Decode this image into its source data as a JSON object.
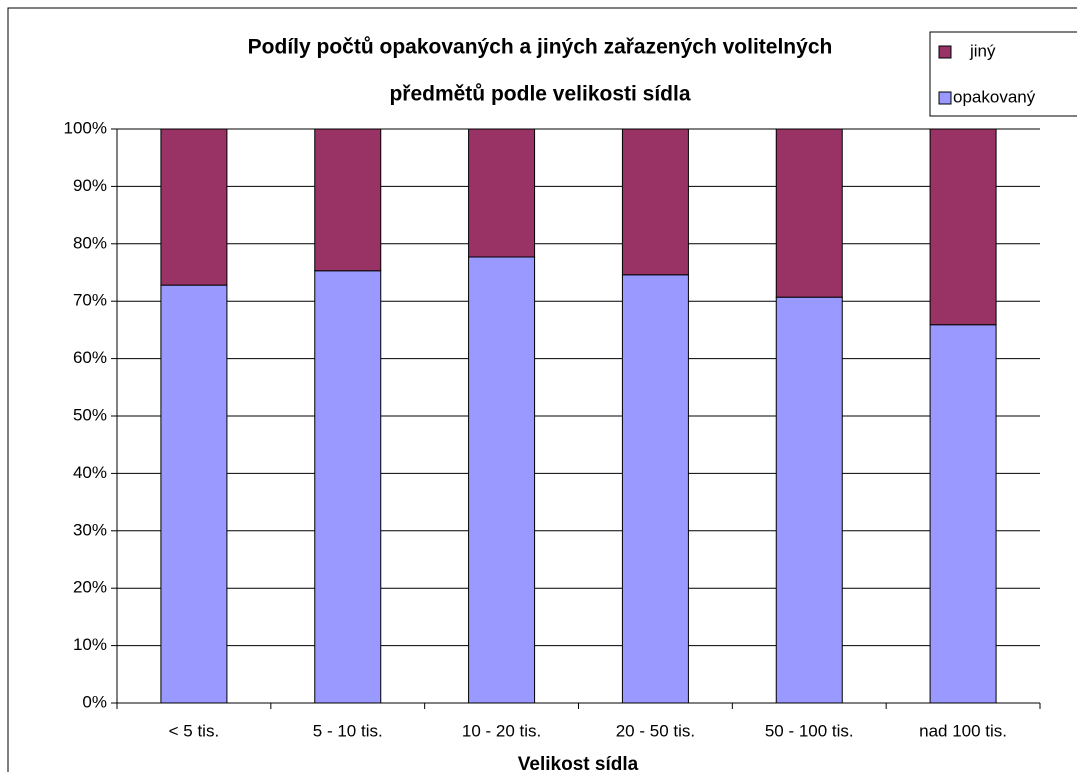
{
  "chart_data": {
    "type": "stacked_bar",
    "title": [
      "Podíly počtů opakovaných a jiných zařazených volitelných",
      "předmětů podle velikosti sídla"
    ],
    "x_label": "Velikost sídla",
    "categories": [
      "< 5 tis.",
      "5 - 10 tis.",
      "10 - 20 tis.",
      "20 - 50 tis.",
      "50 - 100 tis.",
      "nad 100 tis."
    ],
    "series": [
      {
        "name": "opakovaný",
        "color": "#9999ff",
        "values": [
          72.8,
          75.3,
          77.7,
          74.6,
          70.7,
          65.9
        ]
      },
      {
        "name": "jiný",
        "color": "#993366",
        "values": [
          27.2,
          24.7,
          22.3,
          25.4,
          29.3,
          34.1
        ]
      }
    ],
    "ylim": [
      0,
      100
    ],
    "yticks": [
      {
        "value": 0,
        "label": "0%"
      },
      {
        "value": 10,
        "label": "10%"
      },
      {
        "value": 20,
        "label": "20%"
      },
      {
        "value": 30,
        "label": "30%"
      },
      {
        "value": 40,
        "label": "40%"
      },
      {
        "value": 50,
        "label": "50%"
      },
      {
        "value": 60,
        "label": "60%"
      },
      {
        "value": 70,
        "label": "70%"
      },
      {
        "value": 80,
        "label": "80%"
      },
      {
        "value": 90,
        "label": "90%"
      },
      {
        "value": 100,
        "label": "100%"
      }
    ],
    "grid": true,
    "legend": "top-right"
  }
}
